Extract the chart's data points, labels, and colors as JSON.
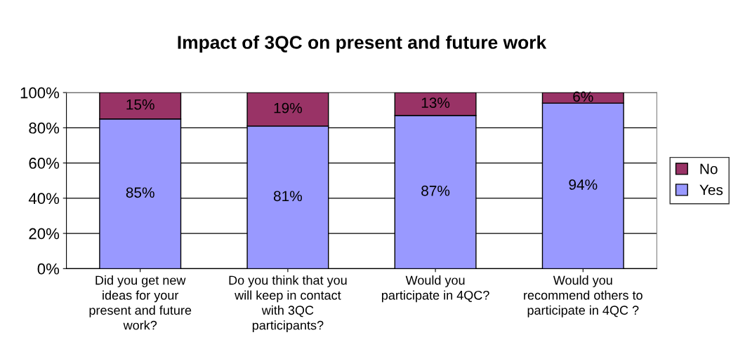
{
  "chart_data": {
    "type": "bar",
    "title": "Impact of 3QC on present and future work",
    "categories": [
      "Did you get new\nideas for your\npresent and future\nwork?",
      "Do you think that you\nwill keep in contact\nwith 3QC\nparticipants?",
      "Would you\nparticipate in 4QC?",
      "Would you\nrecommend others to\nparticipate in 4QC ?"
    ],
    "series": [
      {
        "name": "Yes",
        "color": "#9999ff",
        "values": [
          85,
          81,
          87,
          94
        ],
        "value_labels": [
          "85%",
          "81%",
          "87%",
          "94%"
        ]
      },
      {
        "name": "No",
        "color": "#993366",
        "values": [
          15,
          19,
          13,
          6
        ],
        "value_labels": [
          "15%",
          "19%",
          "13%",
          "6%"
        ]
      }
    ],
    "stacked": true,
    "ylim": [
      0,
      100
    ],
    "yticks": [
      {
        "value": 0,
        "label": "0%"
      },
      {
        "value": 20,
        "label": "20%"
      },
      {
        "value": 40,
        "label": "40%"
      },
      {
        "value": 60,
        "label": "60%"
      },
      {
        "value": 80,
        "label": "80%"
      },
      {
        "value": 100,
        "label": "100%"
      }
    ],
    "grid": "y",
    "legend": "right"
  }
}
